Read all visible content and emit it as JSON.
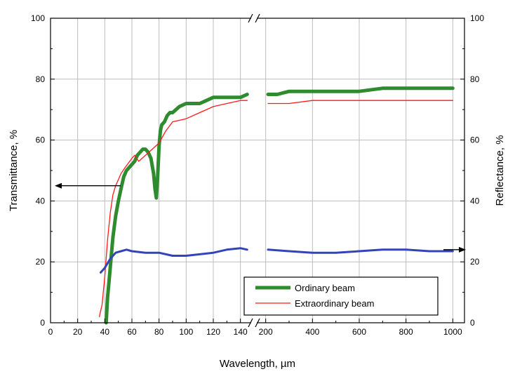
{
  "chart_data": {
    "type": "line",
    "title": "",
    "xlabel": "Wavelength, µm",
    "ylabel_left": "Transmittance, %",
    "ylabel_right": "Reflectance, %",
    "x_break": {
      "left_range": [
        0,
        150
      ],
      "right_range": [
        150,
        1050
      ]
    },
    "ylim": [
      0,
      100
    ],
    "x_ticks_left": [
      "0",
      "20",
      "40",
      "60",
      "80",
      "100",
      "120",
      "140"
    ],
    "x_ticks_right": [
      "200",
      "400",
      "600",
      "800",
      "1000"
    ],
    "y_ticks": [
      "0",
      "20",
      "40",
      "60",
      "80",
      "100"
    ],
    "grid": true,
    "legend_position": "bottom-right",
    "series": [
      {
        "name": "Ordinary beam",
        "axis": "left",
        "color": "#2e8b2e",
        "x": [
          41,
          42,
          44,
          46,
          48,
          50,
          52,
          54,
          56,
          58,
          60,
          62,
          64,
          66,
          68,
          70,
          72,
          74,
          76,
          77,
          78,
          79,
          80,
          81,
          82,
          84,
          86,
          88,
          90,
          95,
          100,
          110,
          120,
          130,
          140,
          145,
          210,
          250,
          300,
          400,
          500,
          600,
          700,
          800,
          900,
          1000
        ],
        "y": [
          0,
          8,
          18,
          28,
          35,
          40,
          44,
          48,
          50,
          51,
          52,
          53,
          55,
          56,
          57,
          57,
          56,
          54,
          49,
          44,
          41,
          48,
          58,
          63,
          65,
          66,
          68,
          69,
          69,
          71,
          72,
          72,
          74,
          74,
          74,
          75,
          75,
          75,
          76,
          76,
          76,
          76,
          77,
          77,
          77,
          77
        ]
      },
      {
        "name": "Extraordinary beam",
        "axis": "left",
        "color": "#ff1a1a",
        "x": [
          36,
          38,
          40,
          42,
          44,
          46,
          48,
          50,
          52,
          55,
          60,
          62,
          65,
          70,
          75,
          80,
          85,
          90,
          100,
          110,
          120,
          130,
          140,
          145,
          210,
          300,
          400,
          500,
          600,
          700,
          780,
          820,
          900,
          1000
        ],
        "y": [
          2,
          6,
          15,
          27,
          36,
          42,
          45,
          47,
          49,
          51,
          54,
          55,
          53,
          55,
          57,
          59,
          63,
          66,
          67,
          69,
          71,
          72,
          73,
          73,
          72,
          72,
          73,
          73,
          73,
          73,
          73,
          73,
          73,
          73
        ]
      },
      {
        "name": "",
        "axis": "right",
        "color": "#3344bb",
        "x": [
          37,
          40,
          44,
          48,
          52,
          56,
          60,
          70,
          80,
          90,
          100,
          110,
          120,
          130,
          140,
          145,
          210,
          300,
          400,
          500,
          600,
          700,
          800,
          900,
          1000
        ],
        "y": [
          16.5,
          18,
          21,
          23,
          23.5,
          24,
          23.5,
          23,
          23,
          22,
          22,
          22.5,
          23,
          24,
          24.5,
          24,
          24,
          23.5,
          23,
          23,
          23.5,
          24,
          24,
          23.5,
          23.5
        ]
      }
    ],
    "annotations": [
      {
        "type": "arrow",
        "points_to": "left-axis",
        "at_y": 45
      },
      {
        "type": "arrow",
        "points_to": "right-axis",
        "at_y": 24
      }
    ]
  }
}
